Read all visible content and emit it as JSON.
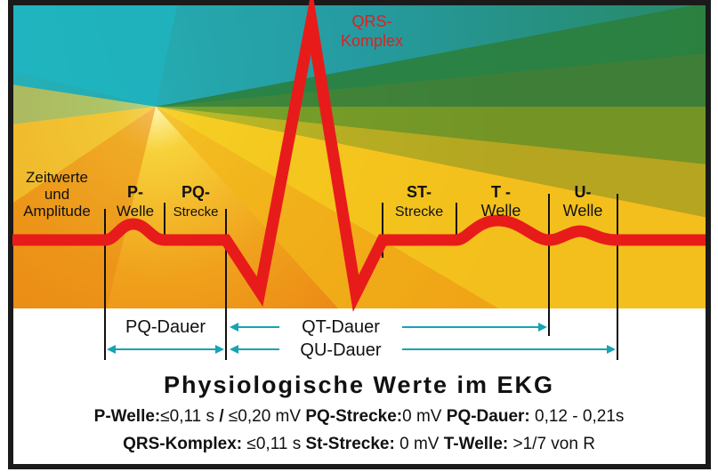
{
  "diagram": {
    "labels": {
      "qrs_line1": "QRS-",
      "qrs_line2": "Komplex",
      "zeitwerte_line1": "Zeitwerte",
      "zeitwerte_line2": "und",
      "zeitwerte_line3": "Amplitude",
      "p_line1": "P-",
      "p_line2": "Welle",
      "pq_line1": "PQ-",
      "pq_line2": "Strecke",
      "st_line1": "ST-",
      "st_line2": "Strecke",
      "t_line1": "T -",
      "t_line2": "Welle",
      "u_line1": "U-",
      "u_line2": "Welle"
    },
    "intervals": {
      "pq_dauer": "PQ-Dauer",
      "qt_dauer": "QT-Dauer",
      "qu_dauer": "QU-Dauer"
    },
    "colors": {
      "trace": "#e81b1b",
      "qrs_label": "#e02020",
      "arrow": "#17a3b3",
      "bg_top": "#1aa0b0",
      "bg_dark_green": "#2a7a3a",
      "bg_orange": "#e8720e",
      "bg_yellow": "#f2c418"
    }
  },
  "info": {
    "title": "Physiologische Werte im EKG",
    "line1": {
      "p_welle_label": "P-Welle:",
      "p_welle_value": "≤0,11 s",
      "slash": "/",
      "p_welle_value2": "≤0,20 mV",
      "pq_strecke_label": "PQ-Strecke:",
      "pq_strecke_value": "0 mV",
      "pq_dauer_label": "PQ-Dauer:",
      "pq_dauer_value": "0,12 - 0,21s"
    },
    "line2": {
      "qrs_label": "QRS-Komplex:",
      "qrs_value": "≤0,11 s",
      "st_label": "St-Strecke:",
      "st_value": "0 mV",
      "t_label": "T-Welle:",
      "t_value": ">1/7 von R"
    }
  }
}
